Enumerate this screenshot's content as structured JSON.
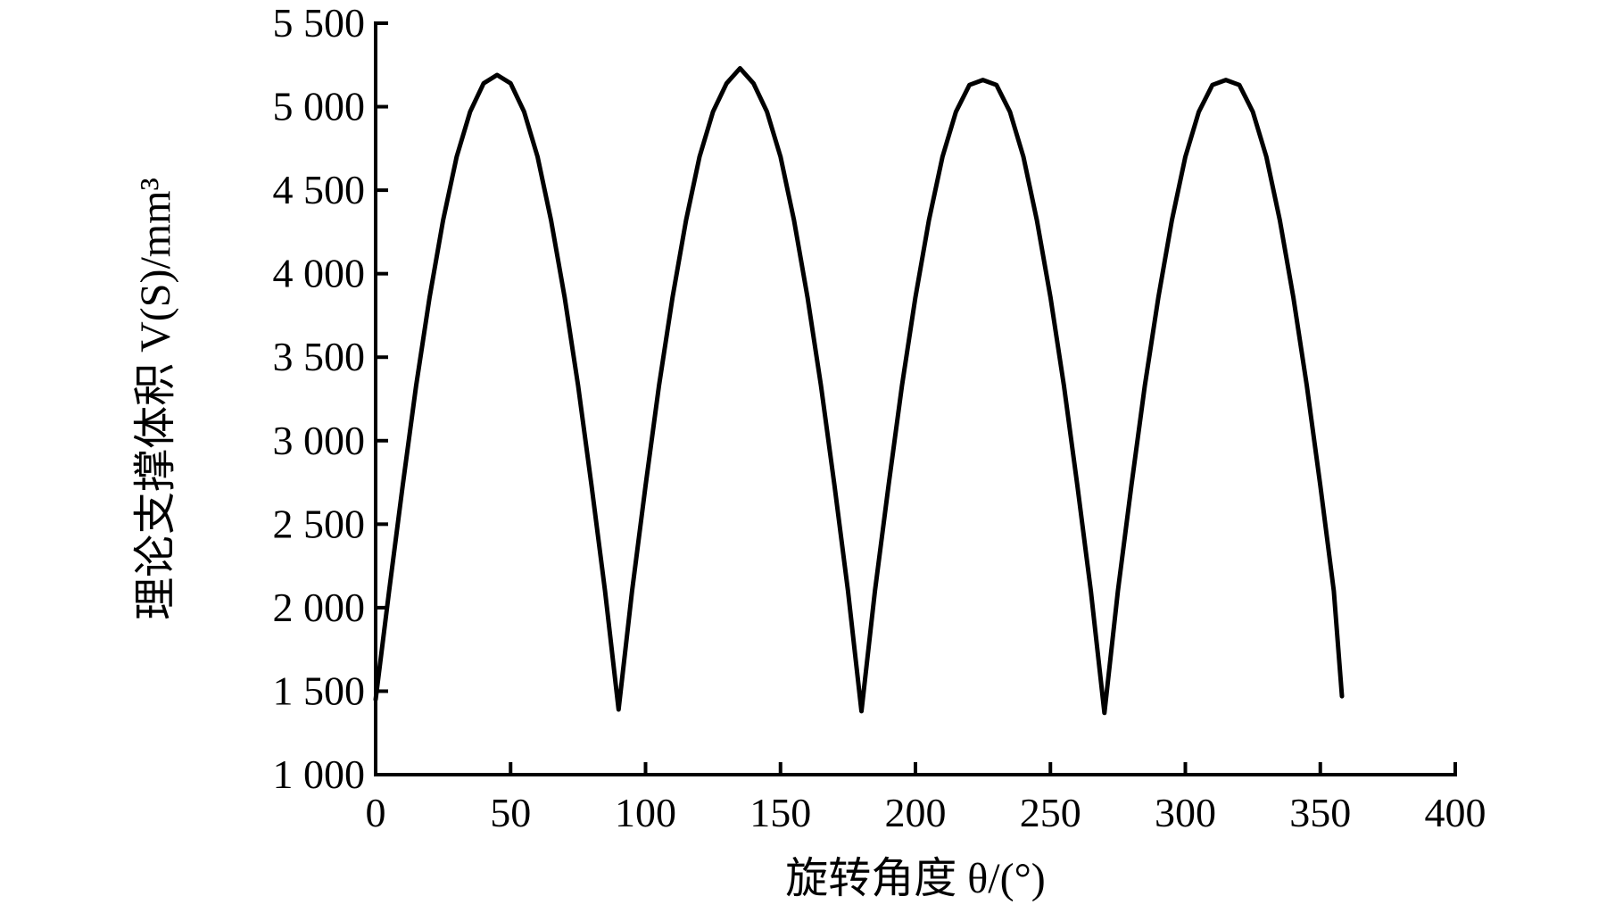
{
  "chart_data": {
    "type": "line",
    "x_label": "旋转角度 θ/(°)",
    "y_label": "理论支撑体积 V(S)/mm³",
    "x": [
      0,
      5,
      10,
      15,
      20,
      25,
      30,
      35,
      40,
      45,
      50,
      55,
      60,
      65,
      70,
      75,
      80,
      85,
      90,
      95,
      100,
      105,
      110,
      115,
      120,
      125,
      130,
      135,
      140,
      145,
      150,
      155,
      160,
      165,
      170,
      175,
      180,
      185,
      190,
      195,
      200,
      205,
      210,
      215,
      220,
      225,
      230,
      235,
      240,
      245,
      250,
      255,
      260,
      265,
      270,
      275,
      280,
      285,
      290,
      295,
      300,
      305,
      310,
      315,
      320,
      325,
      330,
      335,
      340,
      345,
      350,
      355,
      358
    ],
    "series": [
      {
        "name": "V(S)",
        "color": "#000000",
        "values": [
          1450,
          2100,
          2730,
          3330,
          3860,
          4320,
          4700,
          4970,
          5140,
          5190,
          5140,
          4970,
          4700,
          4320,
          3860,
          3330,
          2730,
          2100,
          1390,
          2100,
          2730,
          3330,
          3860,
          4320,
          4700,
          4970,
          5140,
          5230,
          5140,
          4970,
          4700,
          4320,
          3860,
          3330,
          2730,
          2100,
          1380,
          2100,
          2730,
          3330,
          3860,
          4320,
          4700,
          4970,
          5130,
          5160,
          5130,
          4970,
          4700,
          4320,
          3860,
          3330,
          2730,
          2100,
          1370,
          2100,
          2730,
          3330,
          3860,
          4320,
          4700,
          4970,
          5130,
          5160,
          5130,
          4970,
          4700,
          4320,
          3860,
          3330,
          2730,
          2100,
          1470
        ]
      }
    ],
    "xlim": [
      0,
      400
    ],
    "xticks": [
      0,
      50,
      100,
      150,
      200,
      250,
      300,
      350,
      400
    ],
    "ylim": [
      1000,
      5500
    ],
    "yticks": [
      {
        "value": 1000,
        "label": "1 000"
      },
      {
        "value": 1500,
        "label": "1 500"
      },
      {
        "value": 2000,
        "label": "2 000"
      },
      {
        "value": 2500,
        "label": "2 500"
      },
      {
        "value": 3000,
        "label": "3 000"
      },
      {
        "value": 3500,
        "label": "3 500"
      },
      {
        "value": 4000,
        "label": "4 000"
      },
      {
        "value": 4500,
        "label": "4 500"
      },
      {
        "value": 5000,
        "label": "5 000"
      },
      {
        "value": 5500,
        "label": "5 500"
      }
    ],
    "grid": false
  }
}
